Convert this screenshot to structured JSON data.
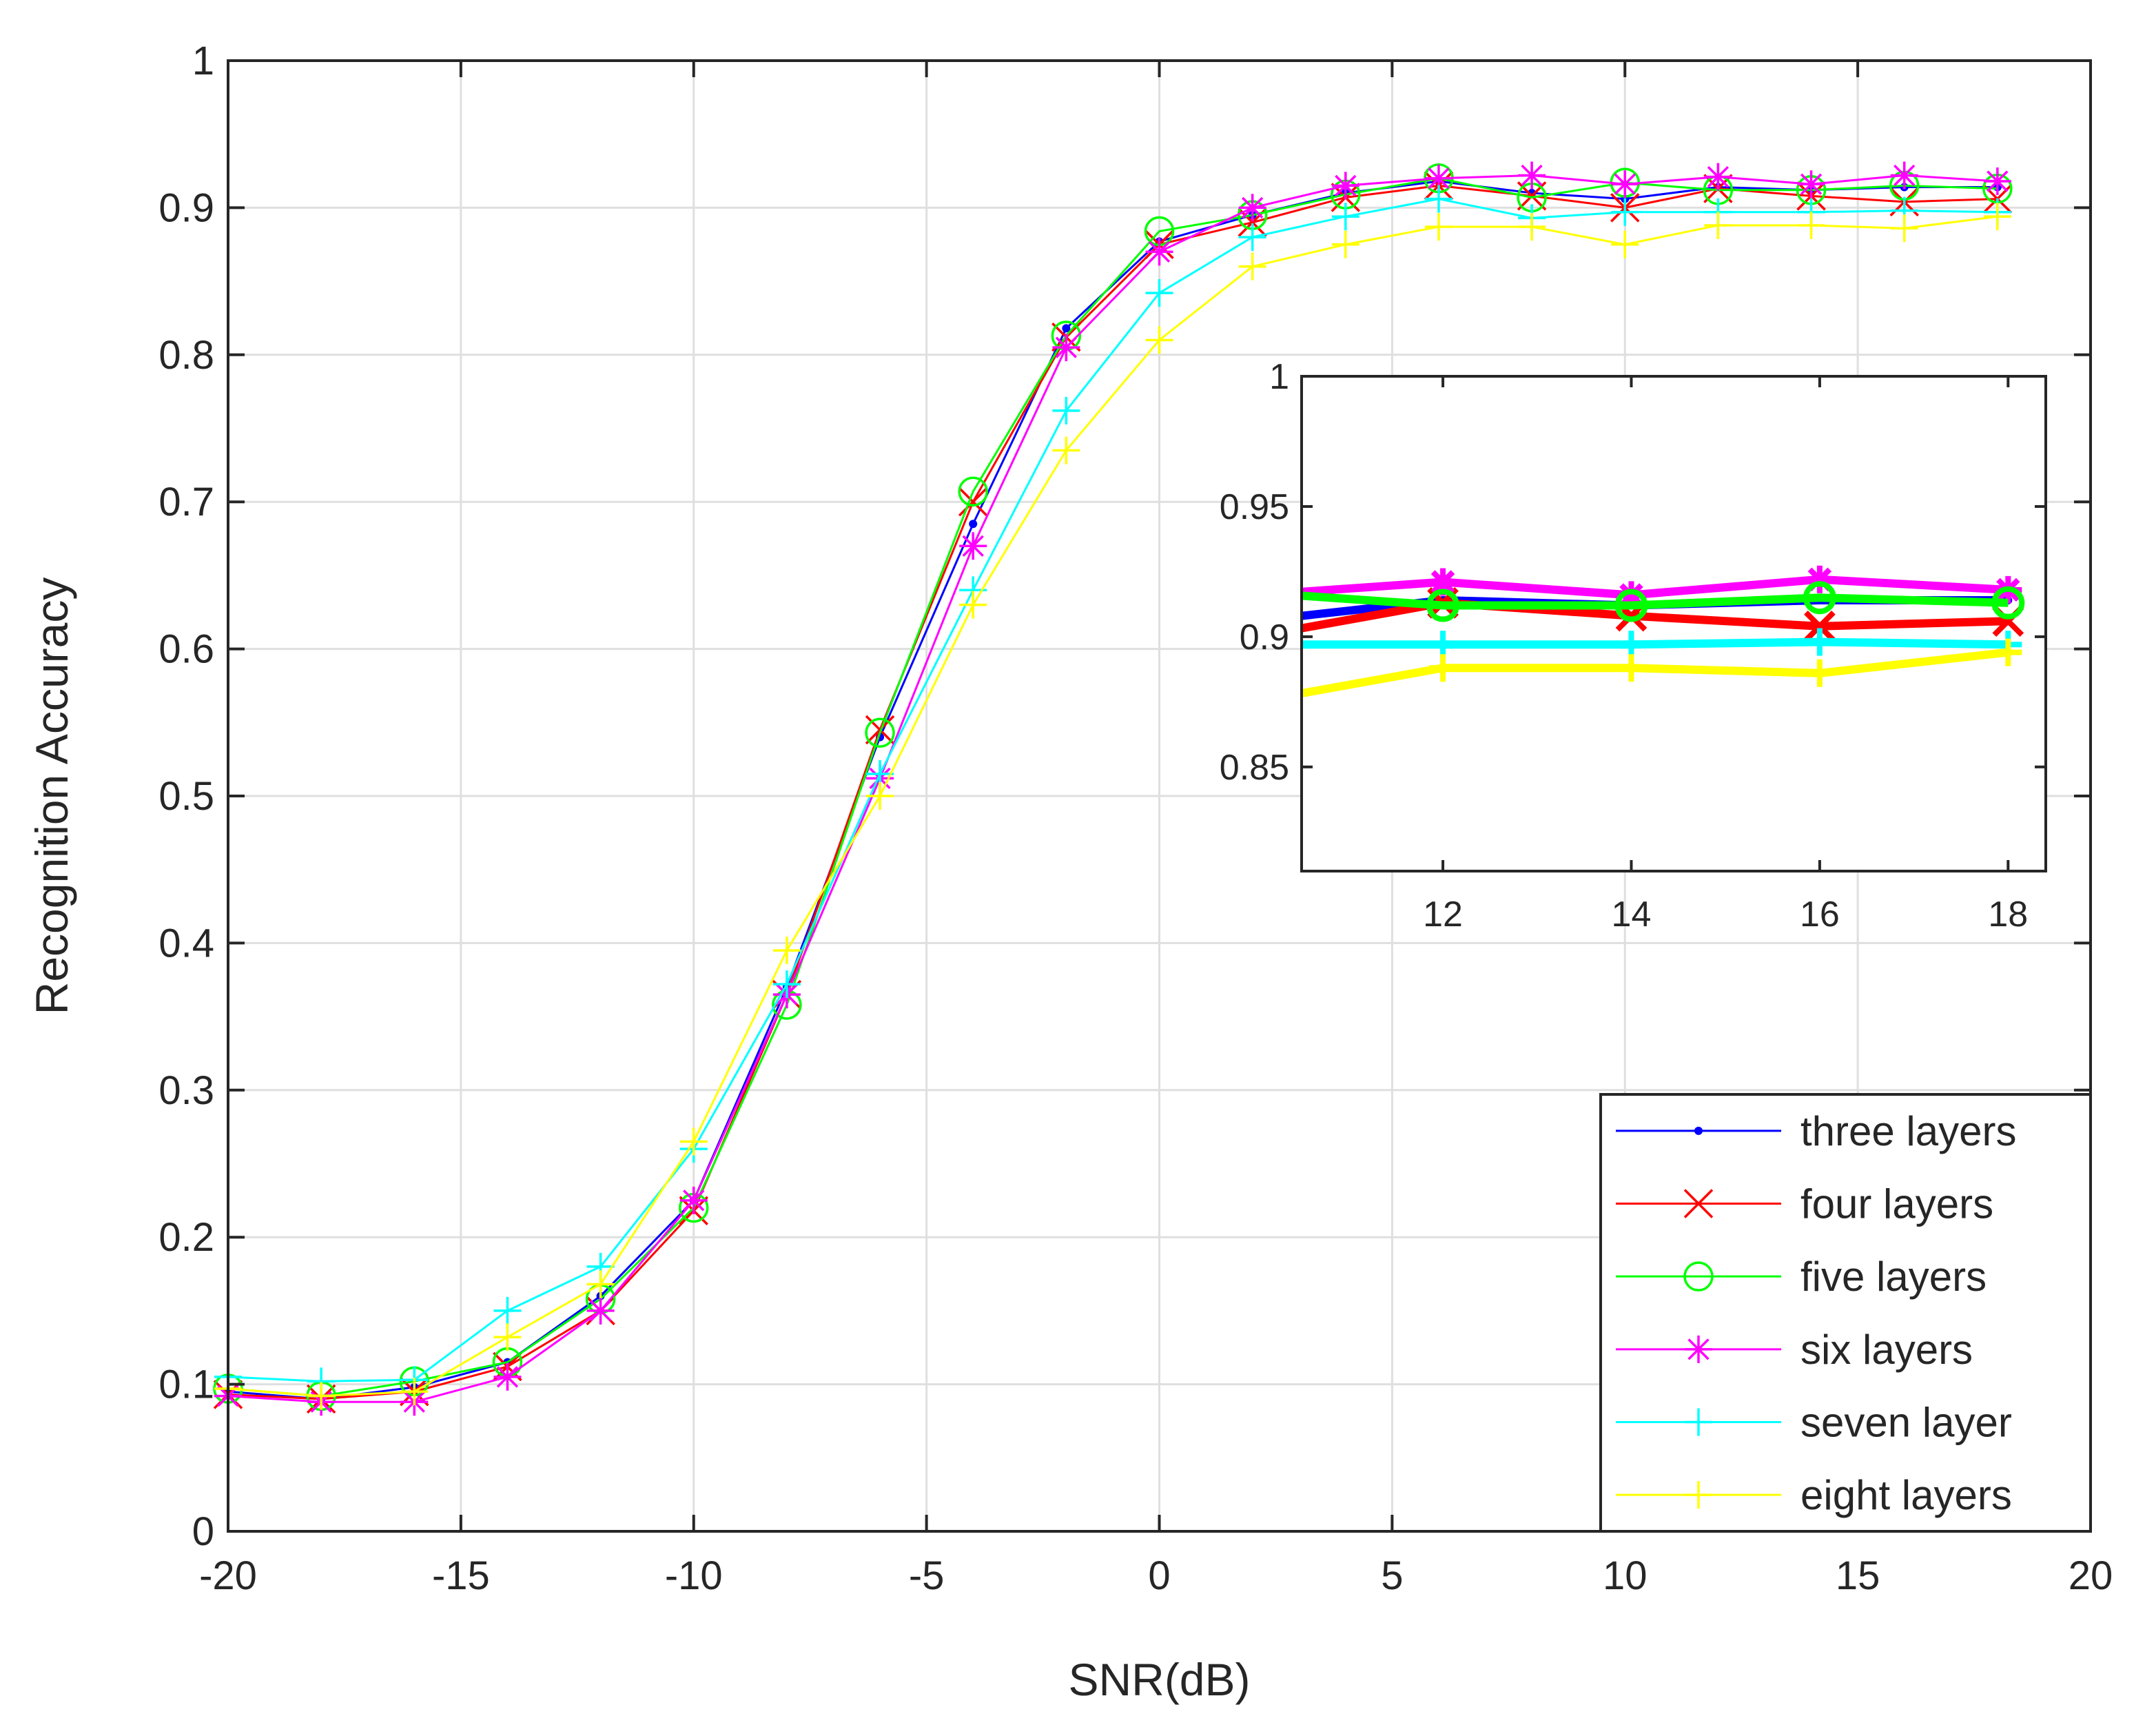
{
  "chart_data": {
    "type": "line",
    "title": "",
    "xlabel": "SNR(dB)",
    "ylabel": "Recognition Accuracy",
    "xlim": [
      -20,
      20
    ],
    "ylim": [
      0,
      1
    ],
    "xticks": [
      -20,
      -15,
      -10,
      -5,
      0,
      5,
      10,
      15,
      20
    ],
    "yticks": [
      0,
      0.1,
      0.2,
      0.3,
      0.4,
      0.5,
      0.6,
      0.7,
      0.8,
      0.9,
      1
    ],
    "xtick_labels": [
      "-20",
      "-15",
      "-10",
      "-5",
      "0",
      "5",
      "10",
      "15",
      "20"
    ],
    "ytick_labels": [
      "0",
      "0.1",
      "0.2",
      "0.3",
      "0.4",
      "0.5",
      "0.6",
      "0.7",
      "0.8",
      "0.9",
      "1"
    ],
    "grid": true,
    "legend_position": "bottom-right",
    "x": [
      -20,
      -18,
      -16,
      -14,
      -12,
      -10,
      -8,
      -6,
      -4,
      -2,
      0,
      2,
      4,
      6,
      8,
      10,
      12,
      14,
      16,
      18
    ],
    "series": [
      {
        "name": "three layers",
        "color": "#0000ff",
        "marker": "dot",
        "values": [
          0.095,
          0.09,
          0.098,
          0.115,
          0.16,
          0.225,
          0.37,
          0.54,
          0.685,
          0.818,
          0.877,
          0.895,
          0.91,
          0.918,
          0.91,
          0.906,
          0.914,
          0.912,
          0.914,
          0.914
        ]
      },
      {
        "name": "four layers",
        "color": "#ff0000",
        "marker": "x",
        "values": [
          0.093,
          0.09,
          0.095,
          0.112,
          0.15,
          0.218,
          0.365,
          0.545,
          0.7,
          0.812,
          0.875,
          0.89,
          0.907,
          0.915,
          0.908,
          0.9,
          0.913,
          0.908,
          0.904,
          0.906
        ]
      },
      {
        "name": "five layers",
        "color": "#00ff00",
        "marker": "circle",
        "values": [
          0.097,
          0.092,
          0.102,
          0.115,
          0.158,
          0.22,
          0.358,
          0.543,
          0.707,
          0.813,
          0.884,
          0.895,
          0.909,
          0.92,
          0.907,
          0.917,
          0.912,
          0.912,
          0.915,
          0.913
        ]
      },
      {
        "name": "six layers",
        "color": "#ff00ff",
        "marker": "star",
        "values": [
          0.092,
          0.088,
          0.088,
          0.105,
          0.15,
          0.225,
          0.365,
          0.512,
          0.67,
          0.805,
          0.87,
          0.9,
          0.915,
          0.92,
          0.922,
          0.916,
          0.921,
          0.916,
          0.922,
          0.918
        ]
      },
      {
        "name": "seven layer",
        "color": "#00ffff",
        "marker": "plus",
        "values": [
          0.105,
          0.102,
          0.103,
          0.15,
          0.18,
          0.26,
          0.372,
          0.515,
          0.64,
          0.762,
          0.842,
          0.88,
          0.894,
          0.906,
          0.893,
          0.897,
          0.897,
          0.897,
          0.898,
          0.897
        ]
      },
      {
        "name": "eight layers",
        "color": "#ffff00",
        "marker": "plus",
        "values": [
          0.097,
          0.092,
          0.095,
          0.132,
          0.168,
          0.265,
          0.395,
          0.5,
          0.63,
          0.735,
          0.81,
          0.86,
          0.875,
          0.887,
          0.887,
          0.875,
          0.888,
          0.888,
          0.886,
          0.894
        ]
      }
    ],
    "inset": {
      "xlim": [
        10.5,
        18.4
      ],
      "ylim": [
        0.81,
        1
      ],
      "xticks": [
        12,
        14,
        16,
        18
      ],
      "yticks": [
        0.85,
        0.9,
        0.95,
        1
      ],
      "xtick_labels": [
        "12",
        "14",
        "16",
        "18"
      ],
      "ytick_labels": [
        "0.85",
        "0.9",
        "0.95",
        "1"
      ],
      "x": [
        10,
        12,
        14,
        16,
        18
      ],
      "series": [
        {
          "name": "three layers",
          "color": "#0000ff",
          "values": [
            0.906,
            0.914,
            0.912,
            0.914,
            0.914
          ]
        },
        {
          "name": "four layers",
          "color": "#ff0000",
          "values": [
            0.9,
            0.913,
            0.908,
            0.904,
            0.906
          ]
        },
        {
          "name": "six layers",
          "color": "#ff00ff",
          "values": [
            0.916,
            0.921,
            0.916,
            0.922,
            0.918
          ]
        },
        {
          "name": "five layers",
          "color": "#00ff00",
          "values": [
            0.917,
            0.912,
            0.912,
            0.915,
            0.913
          ]
        },
        {
          "name": "seven layer",
          "color": "#00ffff",
          "values": [
            0.897,
            0.897,
            0.897,
            0.898,
            0.897
          ]
        },
        {
          "name": "eight layers",
          "color": "#ffff00",
          "values": [
            0.875,
            0.888,
            0.888,
            0.886,
            0.894
          ]
        }
      ]
    }
  }
}
